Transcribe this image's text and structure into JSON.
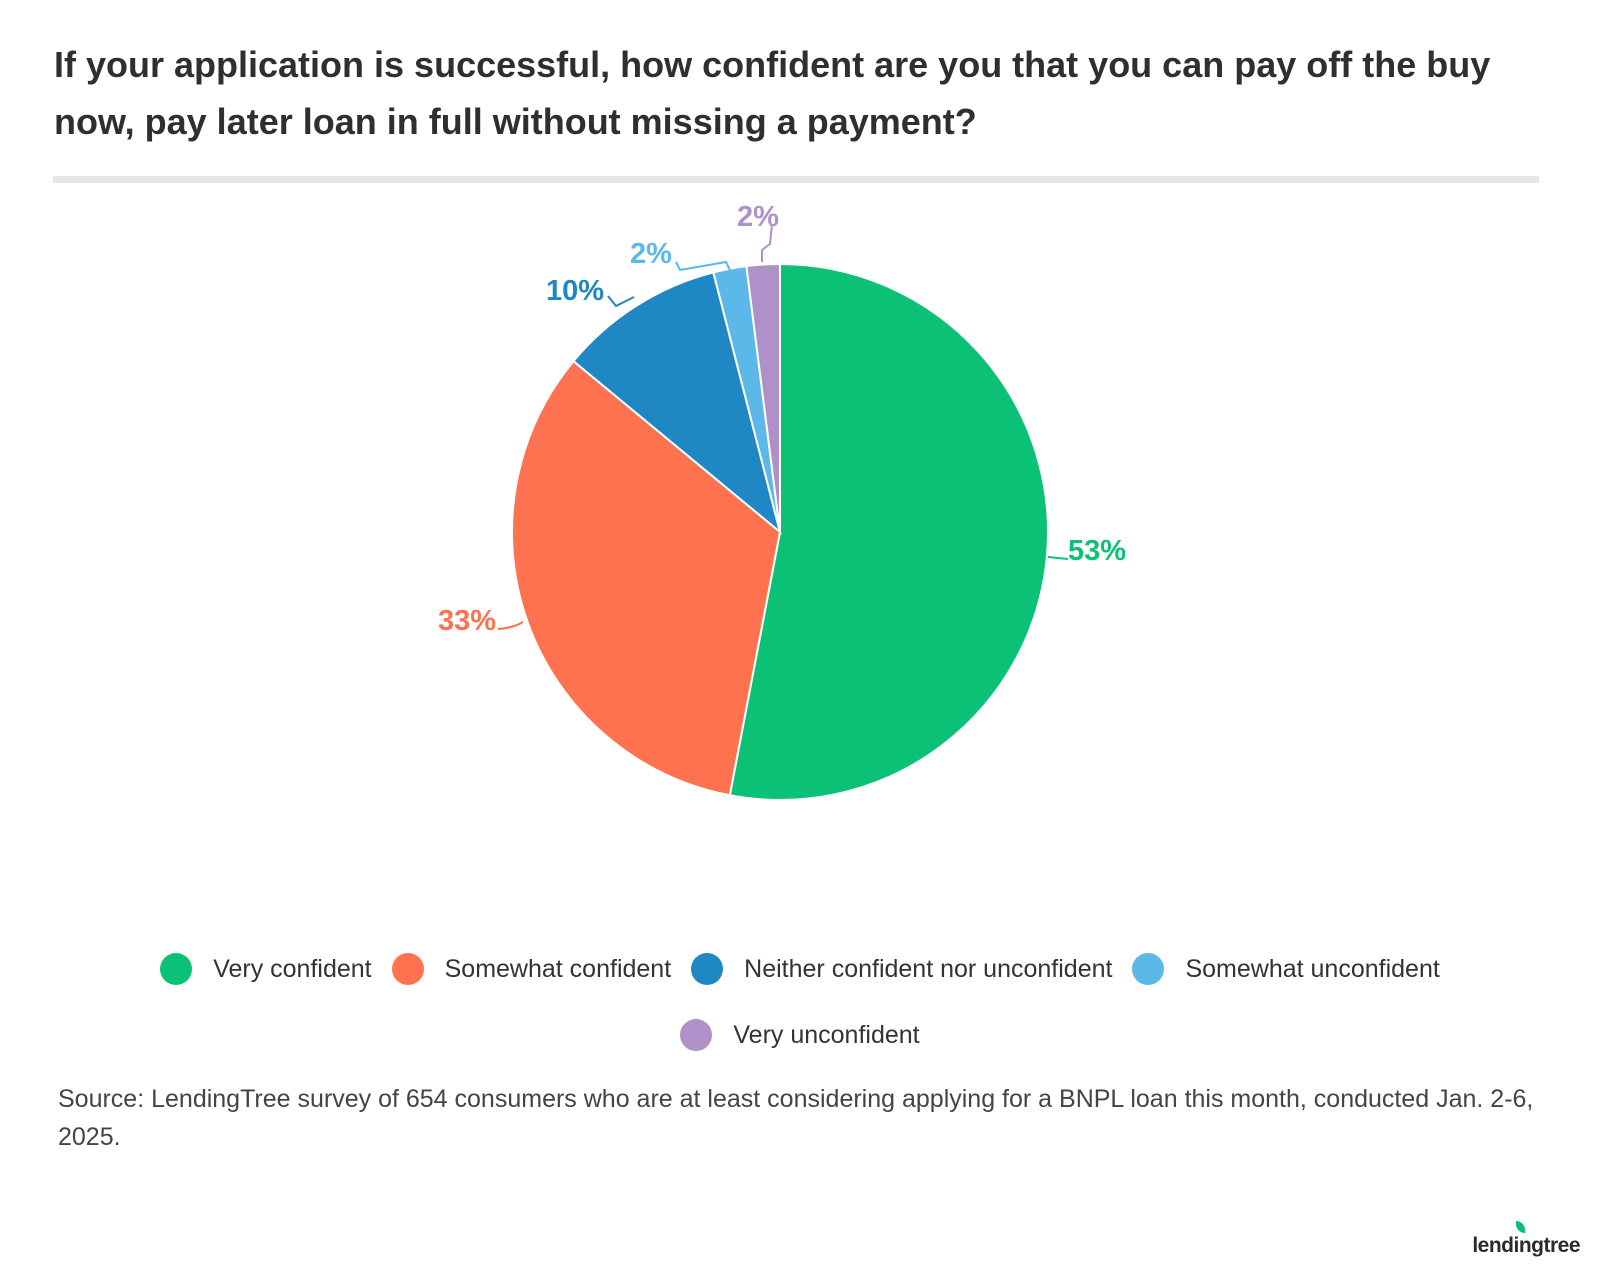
{
  "header": {
    "title": "If your application is successful, how confident are you that you can pay off the buy now, pay later loan in full without missing a payment?"
  },
  "chart_data": {
    "type": "pie",
    "title": "If your application is successful, how confident are you that you can pay off the buy now, pay later loan in full without missing a payment?",
    "categories": [
      "Very confident",
      "Somewhat confident",
      "Neither confident nor unconfident",
      "Somewhat unconfident",
      "Very unconfident"
    ],
    "values": [
      53,
      33,
      10,
      2,
      2
    ],
    "value_labels": [
      "53%",
      "33%",
      "10%",
      "2%",
      "2%"
    ],
    "colors": [
      "#0bc176",
      "#ff724f",
      "#1f87c4",
      "#5bb8e8",
      "#ad91c8"
    ],
    "legend_position": "bottom"
  },
  "source": {
    "text": "Source: LendingTree survey of 654 consumers who are at least considering applying for a BNPL loan this month, conducted Jan. 2-6, 2025."
  },
  "brand": {
    "logo_text": "lendingtree"
  }
}
